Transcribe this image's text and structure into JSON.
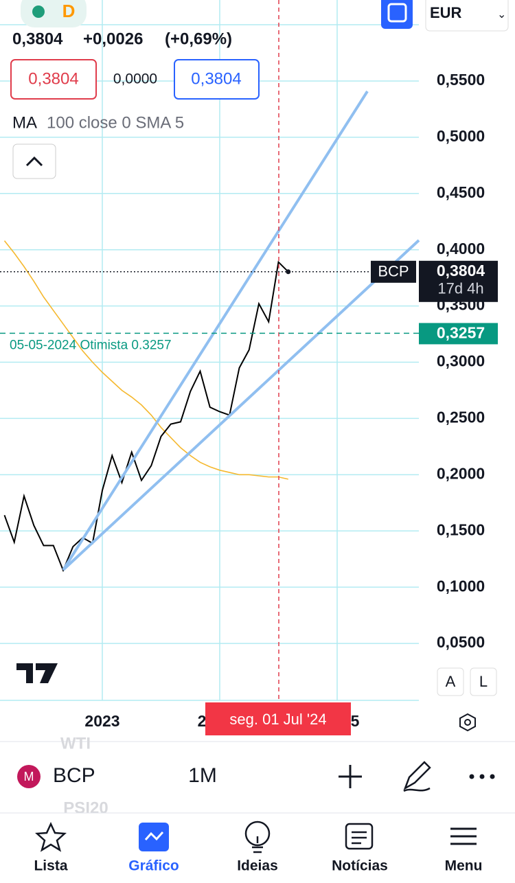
{
  "header": {
    "interval": "D",
    "quote": "0,3804",
    "change": "+0,0026",
    "change_pct": "(+0,69%)",
    "sell": "0,3804",
    "spread": "0,0000",
    "buy": "0,3804",
    "indicator_params": "100 close 0 SMA 5",
    "currency": "EUR"
  },
  "chart_data": {
    "type": "line",
    "categories": [
      null,
      null,
      null,
      null,
      null,
      null,
      null,
      null,
      null,
      null,
      null,
      null,
      null,
      null,
      null,
      null,
      null,
      null,
      null,
      null,
      null,
      null,
      null,
      null,
      null,
      null,
      null,
      null,
      null,
      null
    ],
    "series": [
      {
        "name": "BCP",
        "color": "#000000",
        "values": [
          0.164,
          0.14,
          0.181,
          0.155,
          0.137,
          0.137,
          0.115,
          0.136,
          0.144,
          0.139,
          0.186,
          0.217,
          0.193,
          0.22,
          0.195,
          0.208,
          0.234,
          0.245,
          0.247,
          0.274,
          0.292,
          0.26,
          0.256,
          0.253,
          0.295,
          0.311,
          0.352,
          0.336,
          0.389,
          0.3804
        ]
      },
      {
        "name": "MA",
        "color": "#f5b82e",
        "values": [
          0.408,
          0.397,
          0.385,
          0.372,
          0.358,
          0.346,
          0.334,
          0.322,
          0.31,
          0.3,
          0.291,
          0.283,
          0.275,
          0.269,
          0.262,
          0.253,
          0.242,
          0.233,
          0.224,
          0.217,
          0.211,
          0.207,
          0.204,
          0.202,
          0.2,
          0.2,
          0.199,
          0.198,
          0.198,
          0.196
        ]
      }
    ],
    "ylim": [
      0,
      0.622
    ],
    "yticks": [
      {
        "value": 0.05,
        "label": "0,0500"
      },
      {
        "value": 0.1,
        "label": "0,1000"
      },
      {
        "value": 0.15,
        "label": "0,1500"
      },
      {
        "value": 0.2,
        "label": "0,2000"
      },
      {
        "value": 0.25,
        "label": "0,2500"
      },
      {
        "value": 0.3,
        "label": "0,3000"
      },
      {
        "value": 0.35,
        "label": "0,3500"
      },
      {
        "value": 0.4,
        "label": "0,4000"
      },
      {
        "value": 0.45,
        "label": "0,4500"
      },
      {
        "value": 0.5,
        "label": "0,5000"
      },
      {
        "value": 0.55,
        "label": "0,5500"
      }
    ],
    "grid": true,
    "x_labels": [
      "2023",
      "2",
      "5"
    ],
    "price_tag": {
      "label": "0,3804",
      "countdown": "17d 4h"
    },
    "horizontal_line": {
      "value": 0.3257,
      "label": "0,3257",
      "annotation": "05-05-2024 Otimista 0.3257",
      "color": "#089981"
    },
    "crosshair_label": "seg. 01 Jul '24",
    "scale_buttons": [
      "A",
      "L"
    ]
  },
  "symbol_bar": {
    "symbol": "BCP",
    "timeframe": "1M",
    "prev": "WTI",
    "next": "PSI20"
  },
  "nav": [
    "Lista",
    "Gráfico",
    "Ideias",
    "Notícias",
    "Menu"
  ]
}
